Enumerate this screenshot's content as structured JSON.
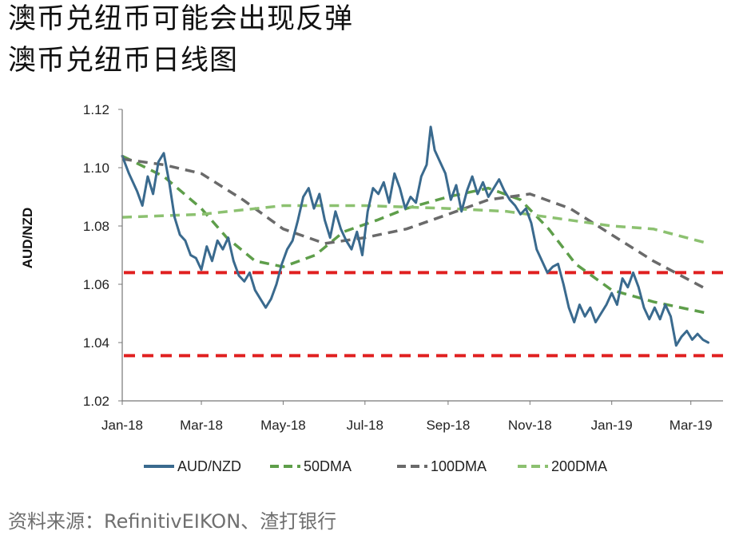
{
  "header": {
    "title_line1": "澳币兑纽币可能会出现反弹",
    "title_line2": "澳币兑纽币日线图"
  },
  "source": "资料来源：RefinitivEIKON、渣打银行",
  "chart_data": {
    "type": "line",
    "ylabel": "AUD/NZD",
    "ylim": [
      1.02,
      1.12
    ],
    "yticks": [
      "1.12",
      "1.10",
      "1.08",
      "1.06",
      "1.04",
      "1.02"
    ],
    "xlim": [
      "2018-01-01",
      "2019-03-25"
    ],
    "xticks": [
      {
        "label": "Jan-18",
        "date": "2018-01-01"
      },
      {
        "label": "Mar-18",
        "date": "2018-03-01"
      },
      {
        "label": "May-18",
        "date": "2018-05-01"
      },
      {
        "label": "Jul-18",
        "date": "2018-07-01"
      },
      {
        "label": "Sep-18",
        "date": "2018-09-01"
      },
      {
        "label": "Nov-18",
        "date": "2018-11-01"
      },
      {
        "label": "Jan-19",
        "date": "2019-01-01"
      },
      {
        "label": "Mar-19",
        "date": "2019-03-01"
      }
    ],
    "legend_position": "bottom",
    "grid": false,
    "series": [
      {
        "name": "AUD/NZD",
        "color": "#3a6a8e",
        "style": "solid",
        "points": [
          [
            "2018-01-01",
            1.104
          ],
          [
            "2018-01-06",
            1.098
          ],
          [
            "2018-01-12",
            1.092
          ],
          [
            "2018-01-16",
            1.087
          ],
          [
            "2018-01-20",
            1.097
          ],
          [
            "2018-01-24",
            1.091
          ],
          [
            "2018-01-28",
            1.102
          ],
          [
            "2018-02-01",
            1.105
          ],
          [
            "2018-02-05",
            1.095
          ],
          [
            "2018-02-09",
            1.083
          ],
          [
            "2018-02-13",
            1.077
          ],
          [
            "2018-02-17",
            1.075
          ],
          [
            "2018-02-21",
            1.07
          ],
          [
            "2018-02-25",
            1.069
          ],
          [
            "2018-03-01",
            1.065
          ],
          [
            "2018-03-05",
            1.073
          ],
          [
            "2018-03-09",
            1.068
          ],
          [
            "2018-03-13",
            1.075
          ],
          [
            "2018-03-17",
            1.072
          ],
          [
            "2018-03-21",
            1.076
          ],
          [
            "2018-03-25",
            1.068
          ],
          [
            "2018-03-29",
            1.063
          ],
          [
            "2018-04-02",
            1.061
          ],
          [
            "2018-04-06",
            1.064
          ],
          [
            "2018-04-10",
            1.058
          ],
          [
            "2018-04-14",
            1.055
          ],
          [
            "2018-04-18",
            1.052
          ],
          [
            "2018-04-22",
            1.055
          ],
          [
            "2018-04-26",
            1.06
          ],
          [
            "2018-04-30",
            1.067
          ],
          [
            "2018-05-04",
            1.072
          ],
          [
            "2018-05-08",
            1.075
          ],
          [
            "2018-05-12",
            1.082
          ],
          [
            "2018-05-16",
            1.09
          ],
          [
            "2018-05-20",
            1.093
          ],
          [
            "2018-05-24",
            1.086
          ],
          [
            "2018-05-28",
            1.091
          ],
          [
            "2018-06-01",
            1.082
          ],
          [
            "2018-06-05",
            1.076
          ],
          [
            "2018-06-09",
            1.085
          ],
          [
            "2018-06-13",
            1.079
          ],
          [
            "2018-06-17",
            1.075
          ],
          [
            "2018-06-21",
            1.072
          ],
          [
            "2018-06-25",
            1.078
          ],
          [
            "2018-06-29",
            1.07
          ],
          [
            "2018-07-03",
            1.085
          ],
          [
            "2018-07-07",
            1.093
          ],
          [
            "2018-07-11",
            1.091
          ],
          [
            "2018-07-15",
            1.095
          ],
          [
            "2018-07-19",
            1.088
          ],
          [
            "2018-07-23",
            1.098
          ],
          [
            "2018-07-27",
            1.093
          ],
          [
            "2018-07-31",
            1.086
          ],
          [
            "2018-08-04",
            1.09
          ],
          [
            "2018-08-08",
            1.088
          ],
          [
            "2018-08-12",
            1.097
          ],
          [
            "2018-08-16",
            1.101
          ],
          [
            "2018-08-19",
            1.114
          ],
          [
            "2018-08-22",
            1.106
          ],
          [
            "2018-08-26",
            1.102
          ],
          [
            "2018-08-30",
            1.098
          ],
          [
            "2018-09-03",
            1.089
          ],
          [
            "2018-09-07",
            1.094
          ],
          [
            "2018-09-11",
            1.085
          ],
          [
            "2018-09-15",
            1.092
          ],
          [
            "2018-09-19",
            1.097
          ],
          [
            "2018-09-23",
            1.091
          ],
          [
            "2018-09-27",
            1.095
          ],
          [
            "2018-10-01",
            1.09
          ],
          [
            "2018-10-05",
            1.093
          ],
          [
            "2018-10-09",
            1.096
          ],
          [
            "2018-10-13",
            1.092
          ],
          [
            "2018-10-17",
            1.089
          ],
          [
            "2018-10-21",
            1.087
          ],
          [
            "2018-10-25",
            1.084
          ],
          [
            "2018-10-29",
            1.086
          ],
          [
            "2018-11-02",
            1.081
          ],
          [
            "2018-11-06",
            1.072
          ],
          [
            "2018-11-10",
            1.068
          ],
          [
            "2018-11-14",
            1.064
          ],
          [
            "2018-11-18",
            1.066
          ],
          [
            "2018-11-22",
            1.067
          ],
          [
            "2018-11-26",
            1.06
          ],
          [
            "2018-11-30",
            1.052
          ],
          [
            "2018-12-04",
            1.047
          ],
          [
            "2018-12-08",
            1.053
          ],
          [
            "2018-12-12",
            1.049
          ],
          [
            "2018-12-16",
            1.052
          ],
          [
            "2018-12-20",
            1.047
          ],
          [
            "2018-12-24",
            1.05
          ],
          [
            "2018-12-28",
            1.053
          ],
          [
            "2019-01-01",
            1.057
          ],
          [
            "2019-01-05",
            1.053
          ],
          [
            "2019-01-09",
            1.062
          ],
          [
            "2019-01-13",
            1.059
          ],
          [
            "2019-01-17",
            1.064
          ],
          [
            "2019-01-21",
            1.059
          ],
          [
            "2019-01-25",
            1.052
          ],
          [
            "2019-01-29",
            1.048
          ],
          [
            "2019-02-02",
            1.052
          ],
          [
            "2019-02-06",
            1.048
          ],
          [
            "2019-02-10",
            1.053
          ],
          [
            "2019-02-14",
            1.049
          ],
          [
            "2019-02-18",
            1.039
          ],
          [
            "2019-02-22",
            1.042
          ],
          [
            "2019-02-26",
            1.044
          ],
          [
            "2019-03-02",
            1.041
          ],
          [
            "2019-03-06",
            1.043
          ],
          [
            "2019-03-10",
            1.041
          ],
          [
            "2019-03-14",
            1.04
          ]
        ]
      },
      {
        "name": "50DMA",
        "color": "#5e9e4a",
        "style": "dashed",
        "points": [
          [
            "2018-01-01",
            1.104
          ],
          [
            "2018-02-01",
            1.097
          ],
          [
            "2018-03-01",
            1.086
          ],
          [
            "2018-03-20",
            1.076
          ],
          [
            "2018-04-10",
            1.068
          ],
          [
            "2018-05-01",
            1.066
          ],
          [
            "2018-05-25",
            1.07
          ],
          [
            "2018-06-15",
            1.078
          ],
          [
            "2018-07-10",
            1.082
          ],
          [
            "2018-08-01",
            1.086
          ],
          [
            "2018-09-01",
            1.09
          ],
          [
            "2018-10-01",
            1.093
          ],
          [
            "2018-10-25",
            1.089
          ],
          [
            "2018-11-15",
            1.079
          ],
          [
            "2018-12-05",
            1.067
          ],
          [
            "2019-01-01",
            1.058
          ],
          [
            "2019-02-01",
            1.054
          ],
          [
            "2019-03-14",
            1.05
          ]
        ]
      },
      {
        "name": "100DMA",
        "color": "#6a6a6a",
        "style": "dashed",
        "points": [
          [
            "2018-01-01",
            1.103
          ],
          [
            "2018-02-01",
            1.101
          ],
          [
            "2018-03-01",
            1.098
          ],
          [
            "2018-04-01",
            1.089
          ],
          [
            "2018-05-01",
            1.079
          ],
          [
            "2018-06-01",
            1.074
          ],
          [
            "2018-07-01",
            1.076
          ],
          [
            "2018-08-01",
            1.079
          ],
          [
            "2018-09-01",
            1.084
          ],
          [
            "2018-10-01",
            1.089
          ],
          [
            "2018-11-01",
            1.091
          ],
          [
            "2018-12-01",
            1.086
          ],
          [
            "2019-01-01",
            1.077
          ],
          [
            "2019-02-01",
            1.068
          ],
          [
            "2019-03-14",
            1.058
          ]
        ]
      },
      {
        "name": "200DMA",
        "color": "#8cc170",
        "style": "dashed",
        "points": [
          [
            "2018-01-01",
            1.083
          ],
          [
            "2018-03-01",
            1.084
          ],
          [
            "2018-05-01",
            1.087
          ],
          [
            "2018-07-01",
            1.087
          ],
          [
            "2018-09-01",
            1.086
          ],
          [
            "2018-10-15",
            1.085
          ],
          [
            "2018-12-01",
            1.082
          ],
          [
            "2019-01-01",
            1.08
          ],
          [
            "2019-02-01",
            1.079
          ],
          [
            "2019-03-14",
            1.074
          ]
        ]
      }
    ],
    "reference_lines": [
      {
        "y": 1.064,
        "color": "#e02020",
        "style": "dashed"
      },
      {
        "y": 1.0355,
        "color": "#e02020",
        "style": "dashed"
      }
    ]
  }
}
